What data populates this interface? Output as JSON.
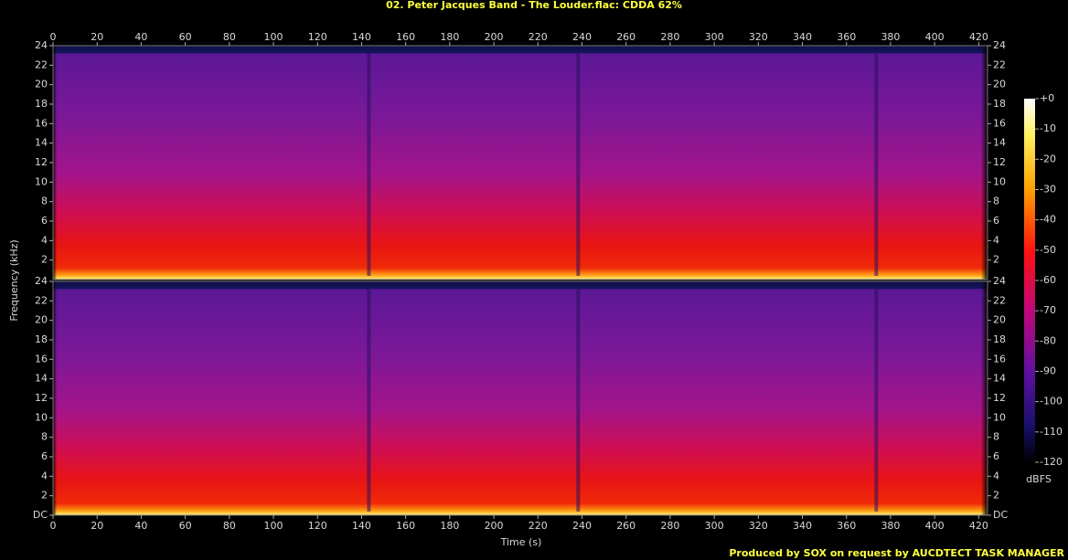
{
  "chart_data": {
    "type": "spectrogram",
    "title": "02. Peter Jacques Band - The Louder.flac: CDDA 62%",
    "xlabel": "Time (s)",
    "ylabel": "Frequency (kHz)",
    "xlim": [
      0,
      424
    ],
    "xticks": [
      0,
      20,
      40,
      60,
      80,
      100,
      120,
      140,
      160,
      180,
      200,
      220,
      240,
      260,
      280,
      300,
      320,
      340,
      360,
      380,
      400,
      420
    ],
    "channels": [
      {
        "ylim": [
          0,
          24
        ],
        "yticks": [
          2,
          4,
          6,
          8,
          10,
          12,
          14,
          16,
          18,
          20,
          22,
          24
        ]
      },
      {
        "ylim": [
          0,
          24
        ],
        "yticks": [
          {
            "value": 0,
            "label": "DC"
          },
          2,
          4,
          6,
          8,
          10,
          12,
          14,
          16,
          18,
          20,
          22,
          24
        ]
      }
    ],
    "colorbar": {
      "label": "dBFS",
      "lim": [
        -120,
        0
      ],
      "ticks": [
        {
          "value": 0,
          "label": "+0"
        },
        -10,
        -20,
        -30,
        -40,
        -50,
        -60,
        -70,
        -80,
        -90,
        -100,
        -110,
        -120
      ]
    },
    "footer": "Produced by SOX on request by AUCDTECT TASK MANAGER"
  }
}
